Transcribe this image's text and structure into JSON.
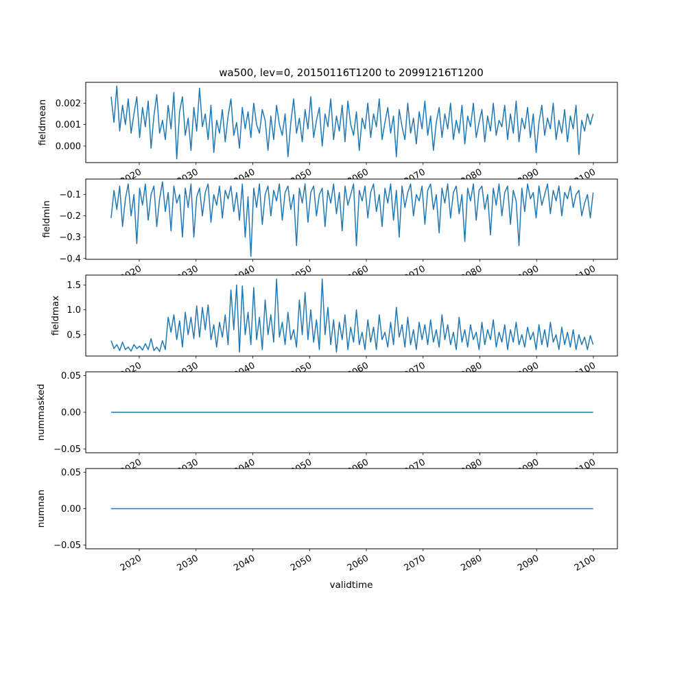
{
  "chart_data": {
    "type": "line",
    "title": "wa500, lev=0, 20150116T1200 to 20991216T1200",
    "xlabel": "validtime",
    "x_start": 2015.04,
    "x_end": 2099.96,
    "xlim": [
      2010.57,
      2104.23
    ],
    "xticks": [
      2020,
      2030,
      2040,
      2050,
      2060,
      2070,
      2080,
      2090,
      2100
    ],
    "xtick_labels": [
      "2020",
      "2030",
      "2040",
      "2050",
      "2060",
      "2070",
      "2080",
      "2090",
      "2100"
    ],
    "line_color": "#1f77b4",
    "grid": false,
    "panels": [
      {
        "ylabel": "fieldmean",
        "ylim": [
          -0.00077,
          0.00297
        ],
        "yticks": [
          0.0,
          0.001,
          0.002
        ],
        "ytick_labels": [
          "0.000",
          "0.001",
          "0.002"
        ],
        "value_scale": 0.001,
        "values": [
          2.3,
          1.1,
          2.8,
          0.7,
          1.9,
          1.0,
          2.2,
          0.6,
          1.5,
          2.3,
          0.4,
          1.8,
          0.9,
          2.1,
          -0.1,
          1.4,
          2.4,
          0.6,
          1.2,
          0.3,
          1.9,
          0.8,
          2.5,
          -0.6,
          1.6,
          2.3,
          0.5,
          1.3,
          -0.2,
          1.8,
          0.7,
          2.7,
          0.9,
          1.5,
          0.3,
          1.9,
          -0.3,
          1.2,
          0.6,
          1.7,
          0.2,
          1.4,
          2.2,
          0.5,
          1.1,
          -0.1,
          1.8,
          0.8,
          1.6,
          0.4,
          2.0,
          1.0,
          0.6,
          1.7,
          1.2,
          -0.2,
          1.4,
          0.3,
          1.9,
          1.0,
          0.5,
          1.5,
          -0.5,
          1.1,
          2.2,
          0.6,
          1.3,
          0.2,
          1.7,
          0.8,
          2.3,
          0.4,
          1.2,
          1.8,
          0.0,
          1.5,
          0.9,
          2.2,
          0.3,
          1.4,
          0.7,
          1.9,
          0.2,
          2.1,
          1.0,
          0.5,
          1.6,
          -0.2,
          1.3,
          0.8,
          2.0,
          0.4,
          1.5,
          0.9,
          2.2,
          0.3,
          1.1,
          1.8,
          0.6,
          1.4,
          -0.5,
          1.7,
          0.9,
          0.3,
          2.0,
          0.6,
          1.3,
          0.1,
          1.6,
          0.8,
          2.1,
          0.5,
          1.4,
          -0.2,
          1.1,
          1.8,
          0.4,
          1.5,
          0.8,
          2.0,
          0.3,
          1.2,
          0.6,
          1.9,
          0.1,
          1.4,
          0.9,
          2.0,
          0.4,
          1.1,
          1.7,
          0.2,
          1.4,
          0.7,
          2.0,
          0.5,
          1.2,
          0.9,
          1.9,
          0.3,
          1.5,
          0.6,
          2.1,
          0.2,
          1.3,
          0.8,
          1.8,
          0.4,
          1.5,
          -0.3,
          1.1,
          1.9,
          0.5,
          1.3,
          0.8,
          2.0,
          0.3,
          1.2,
          0.6,
          1.7,
          0.2,
          1.4,
          0.8,
          1.9,
          -0.4,
          1.2,
          0.7,
          1.5,
          1.0,
          1.5
        ]
      },
      {
        "ylabel": "fieldmin",
        "ylim": [
          -0.404,
          -0.027
        ],
        "yticks": [
          -0.4,
          -0.3,
          -0.2,
          -0.1
        ],
        "ytick_labels": [
          "−0.4",
          "−0.3",
          "−0.2",
          "−0.1"
        ],
        "value_scale": 1,
        "values": [
          -0.21,
          -0.08,
          -0.17,
          -0.06,
          -0.25,
          -0.12,
          -0.05,
          -0.2,
          -0.1,
          -0.33,
          -0.07,
          -0.15,
          -0.05,
          -0.22,
          -0.1,
          -0.06,
          -0.25,
          -0.12,
          -0.04,
          -0.18,
          -0.09,
          -0.27,
          -0.06,
          -0.14,
          -0.1,
          -0.3,
          -0.07,
          -0.16,
          -0.05,
          -0.3,
          -0.11,
          -0.07,
          -0.2,
          -0.09,
          -0.05,
          -0.23,
          -0.1,
          -0.15,
          -0.06,
          -0.21,
          -0.08,
          -0.12,
          -0.06,
          -0.18,
          -0.09,
          -0.22,
          -0.05,
          -0.3,
          -0.11,
          -0.39,
          -0.07,
          -0.16,
          -0.05,
          -0.24,
          -0.1,
          -0.06,
          -0.2,
          -0.08,
          -0.13,
          -0.05,
          -0.22,
          -0.09,
          -0.06,
          -0.17,
          -0.1,
          -0.34,
          -0.07,
          -0.14,
          -0.05,
          -0.23,
          -0.09,
          -0.06,
          -0.2,
          -0.1,
          -0.07,
          -0.25,
          -0.08,
          -0.14,
          -0.05,
          -0.19,
          -0.09,
          -0.27,
          -0.06,
          -0.15,
          -0.1,
          -0.05,
          -0.34,
          -0.08,
          -0.13,
          -0.06,
          -0.21,
          -0.09,
          -0.05,
          -0.18,
          -0.1,
          -0.25,
          -0.07,
          -0.14,
          -0.05,
          -0.22,
          -0.08,
          -0.3,
          -0.06,
          -0.16,
          -0.09,
          -0.05,
          -0.2,
          -0.1,
          -0.13,
          -0.06,
          -0.24,
          -0.08,
          -0.05,
          -0.17,
          -0.1,
          -0.28,
          -0.07,
          -0.14,
          -0.05,
          -0.21,
          -0.09,
          -0.06,
          -0.19,
          -0.1,
          -0.32,
          -0.07,
          -0.13,
          -0.05,
          -0.22,
          -0.08,
          -0.06,
          -0.17,
          -0.1,
          -0.29,
          -0.07,
          -0.15,
          -0.05,
          -0.2,
          -0.09,
          -0.06,
          -0.24,
          -0.08,
          -0.13,
          -0.34,
          -0.07,
          -0.18,
          -0.05,
          -0.12,
          -0.09,
          -0.21,
          -0.06,
          -0.15,
          -0.1,
          -0.05,
          -0.19,
          -0.08,
          -0.13,
          -0.06,
          -0.2,
          -0.09,
          -0.12,
          -0.06,
          -0.16,
          -0.1,
          -0.08,
          -0.2,
          -0.14,
          -0.1,
          -0.21,
          -0.09
        ]
      },
      {
        "ylabel": "fieldmax",
        "ylim": [
          0.07,
          1.7
        ],
        "yticks": [
          0.5,
          1.0,
          1.5
        ],
        "ytick_labels": [
          "0.5",
          "1.0",
          "1.5"
        ],
        "value_scale": 1,
        "values": [
          0.38,
          0.22,
          0.3,
          0.18,
          0.35,
          0.2,
          0.25,
          0.17,
          0.3,
          0.22,
          0.27,
          0.19,
          0.32,
          0.2,
          0.42,
          0.18,
          0.25,
          0.16,
          0.38,
          0.2,
          0.85,
          0.55,
          0.9,
          0.4,
          0.78,
          0.25,
          0.95,
          0.5,
          0.85,
          0.42,
          1.08,
          0.45,
          1.05,
          0.6,
          1.1,
          0.4,
          0.7,
          0.25,
          0.75,
          0.45,
          0.9,
          0.3,
          1.4,
          0.6,
          1.5,
          0.15,
          1.48,
          0.5,
          0.95,
          0.3,
          1.45,
          0.4,
          0.85,
          0.2,
          1.2,
          0.5,
          0.9,
          0.35,
          1.62,
          0.45,
          0.75,
          0.3,
          0.95,
          0.4,
          0.6,
          0.25,
          1.2,
          0.5,
          1.35,
          0.4,
          1.0,
          0.35,
          0.8,
          0.2,
          1.62,
          0.5,
          1.05,
          0.3,
          0.8,
          0.15,
          0.75,
          0.4,
          0.9,
          0.2,
          0.65,
          0.35,
          1.0,
          0.3,
          0.55,
          0.2,
          0.8,
          0.35,
          0.65,
          0.2,
          0.9,
          0.4,
          0.55,
          0.25,
          0.75,
          0.3,
          1.05,
          0.45,
          0.7,
          0.25,
          0.85,
          0.3,
          0.6,
          0.2,
          0.75,
          0.4,
          0.7,
          0.3,
          0.8,
          0.35,
          0.6,
          0.25,
          0.9,
          0.4,
          0.7,
          0.3,
          0.55,
          0.2,
          0.85,
          0.35,
          0.6,
          0.25,
          0.7,
          0.4,
          0.55,
          0.2,
          0.75,
          0.3,
          0.6,
          0.4,
          0.8,
          0.25,
          0.55,
          0.35,
          0.7,
          0.2,
          0.6,
          0.35,
          0.75,
          0.3,
          0.5,
          0.25,
          0.65,
          0.4,
          0.55,
          0.2,
          0.7,
          0.3,
          0.6,
          0.25,
          0.75,
          0.35,
          0.5,
          0.2,
          0.65,
          0.3,
          0.55,
          0.25,
          0.6,
          0.2,
          0.5,
          0.3,
          0.45,
          0.2,
          0.48,
          0.3
        ]
      },
      {
        "ylabel": "nummasked",
        "ylim": [
          -0.055,
          0.055
        ],
        "yticks": [
          -0.05,
          0.0,
          0.05
        ],
        "ytick_labels": [
          "−0.05",
          "0.00",
          "0.05"
        ],
        "value_scale": 1,
        "values": [
          0,
          0
        ]
      },
      {
        "ylabel": "numnan",
        "ylim": [
          -0.055,
          0.055
        ],
        "yticks": [
          -0.05,
          0.0,
          0.05
        ],
        "ytick_labels": [
          "−0.05",
          "0.00",
          "0.05"
        ],
        "value_scale": 1,
        "values": [
          0,
          0
        ]
      }
    ]
  }
}
